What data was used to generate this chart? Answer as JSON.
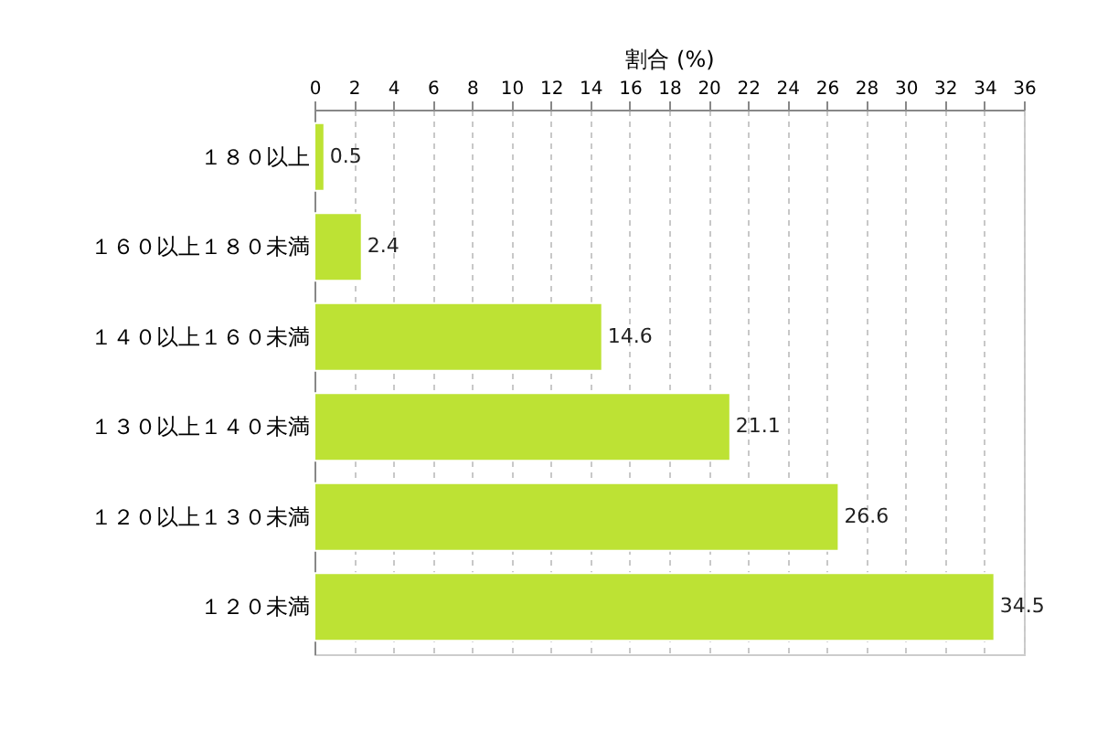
{
  "chart_data": {
    "type": "bar",
    "orientation": "horizontal",
    "xlabel": "割合 (%)",
    "categories": [
      "１８０以上",
      "１６０以上１８０未満",
      "１４０以上１６０未満",
      "１３０以上１４０未満",
      "１２０以上１３０未満",
      "１２０未満"
    ],
    "values": [
      0.5,
      2.4,
      14.6,
      21.1,
      26.6,
      34.5
    ],
    "color": "#bde234",
    "xlim": [
      0,
      36
    ],
    "xticks": [
      0,
      2,
      4,
      6,
      8,
      10,
      12,
      14,
      16,
      18,
      20,
      22,
      24,
      26,
      28,
      30,
      32,
      34,
      36
    ],
    "grid": "x",
    "data_labels": true
  }
}
